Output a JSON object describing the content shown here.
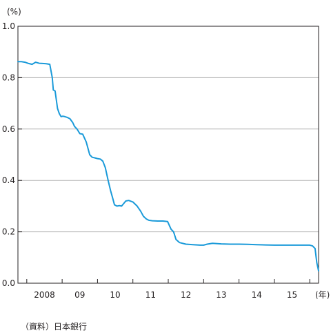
{
  "source_note": "（資料）日本銀行",
  "chart_data": {
    "type": "line",
    "y_unit": "(%)",
    "x_unit": "(年)",
    "ylim": [
      0.0,
      1.0
    ],
    "y_ticks": [
      "0.0",
      "0.2",
      "0.4",
      "0.6",
      "0.8",
      "1.0"
    ],
    "x_range": [
      2007.75,
      2016.25
    ],
    "x_ticks": [
      {
        "label": "2008",
        "value": 2008.5
      },
      {
        "label": "09",
        "value": 2009.5
      },
      {
        "label": "10",
        "value": 2010.5
      },
      {
        "label": "11",
        "value": 2011.5
      },
      {
        "label": "12",
        "value": 2012.5
      },
      {
        "label": "13",
        "value": 2013.5
      },
      {
        "label": "14",
        "value": 2014.5
      },
      {
        "label": "15",
        "value": 2015.5
      }
    ],
    "x_gridlines": [
      2008,
      2009,
      2010,
      2011,
      2012,
      2013,
      2014,
      2015,
      2016
    ],
    "grid": "horizontal",
    "line_color": "#1a9ad9",
    "series": [
      {
        "x": [
          2007.75,
          2007.85,
          2007.95,
          2008.05,
          2008.15,
          2008.25,
          2008.35,
          2008.45,
          2008.55,
          2008.65,
          2008.72,
          2008.75,
          2008.8,
          2008.87,
          2008.92,
          2008.97,
          2009.02,
          2009.08,
          2009.15,
          2009.22,
          2009.3,
          2009.35,
          2009.42,
          2009.5,
          2009.58,
          2009.68,
          2009.78,
          2009.85,
          2009.92,
          2010.0,
          2010.08,
          2010.15,
          2010.22,
          2010.3,
          2010.37,
          2010.43,
          2010.48,
          2010.55,
          2010.62,
          2010.68,
          2010.8,
          2010.88,
          2011.0,
          2011.12,
          2011.22,
          2011.3,
          2011.38,
          2011.45,
          2011.55,
          2011.7,
          2011.85,
          2011.98,
          2012.08,
          2012.15,
          2012.22,
          2012.32,
          2012.5,
          2012.7,
          2012.9,
          2013.0,
          2013.1,
          2013.25,
          2013.5,
          2013.75,
          2014.0,
          2014.25,
          2014.5,
          2014.75,
          2015.0,
          2015.25,
          2015.5,
          2015.75,
          2016.0,
          2016.08,
          2016.15,
          2016.2,
          2016.25
        ],
        "y": [
          0.862,
          0.862,
          0.86,
          0.855,
          0.852,
          0.86,
          0.856,
          0.855,
          0.854,
          0.852,
          0.8,
          0.752,
          0.748,
          0.68,
          0.66,
          0.648,
          0.65,
          0.648,
          0.645,
          0.64,
          0.625,
          0.61,
          0.6,
          0.582,
          0.58,
          0.55,
          0.5,
          0.49,
          0.488,
          0.485,
          0.483,
          0.475,
          0.45,
          0.4,
          0.36,
          0.33,
          0.305,
          0.3,
          0.302,
          0.3,
          0.32,
          0.322,
          0.316,
          0.3,
          0.28,
          0.26,
          0.25,
          0.245,
          0.243,
          0.242,
          0.242,
          0.24,
          0.21,
          0.2,
          0.17,
          0.158,
          0.152,
          0.15,
          0.148,
          0.148,
          0.152,
          0.155,
          0.153,
          0.152,
          0.152,
          0.151,
          0.15,
          0.149,
          0.148,
          0.148,
          0.148,
          0.148,
          0.148,
          0.145,
          0.135,
          0.08,
          0.048
        ]
      }
    ]
  }
}
